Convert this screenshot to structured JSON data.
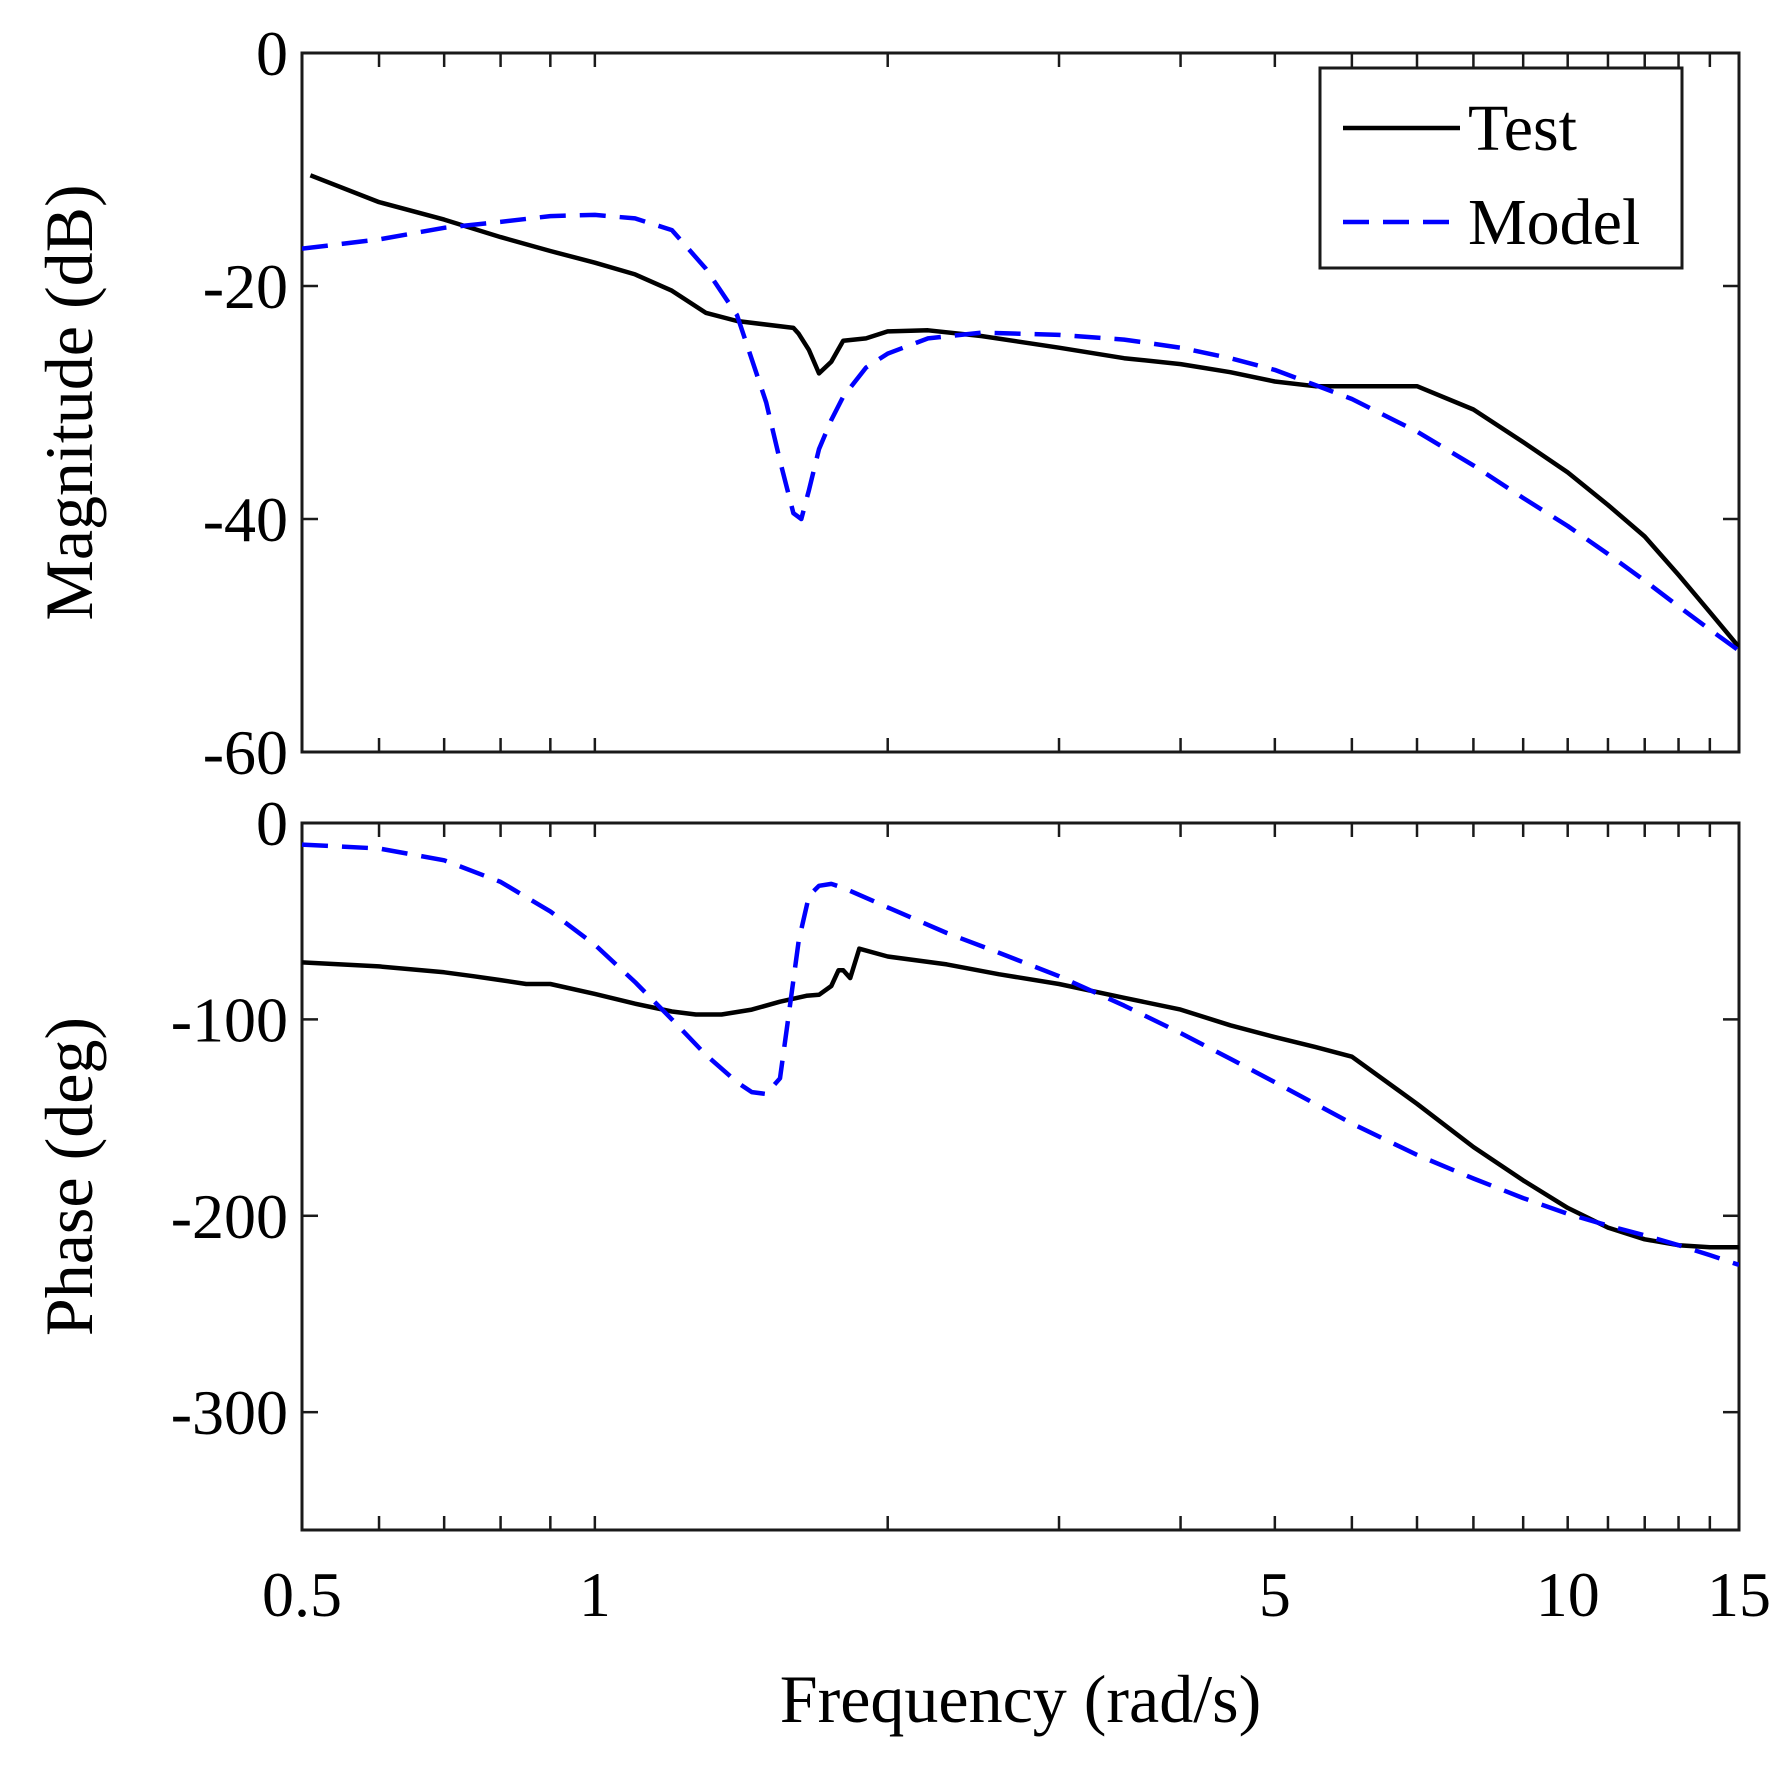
{
  "chart_data": [
    {
      "type": "line",
      "id": "magnitude",
      "xscale": "log",
      "xlim": [
        0.5,
        15
      ],
      "ylim": [
        -60,
        0
      ],
      "yticks": [
        0,
        -20,
        -40,
        -60
      ],
      "ytick_labels": [
        "0",
        "-20",
        "-40",
        "-60"
      ],
      "ylabel": "Magnitude (dB)",
      "xlabel": "",
      "grid": false,
      "legend": {
        "placement": "top-right",
        "entries": [
          {
            "label": "Test",
            "color": "#000000",
            "style": "solid"
          },
          {
            "label": "Model",
            "color": "#0000ff",
            "style": "dashed"
          }
        ]
      },
      "series": [
        {
          "name": "Test",
          "color": "#000000",
          "style": "solid",
          "x": [
            0.51,
            0.6,
            0.7,
            0.8,
            0.9,
            1.0,
            1.1,
            1.2,
            1.3,
            1.4,
            1.6,
            1.62,
            1.66,
            1.7,
            1.75,
            1.8,
            1.9,
            2.0,
            2.2,
            2.5,
            3.0,
            3.5,
            4.0,
            4.5,
            5.0,
            5.5,
            6.0,
            7.0,
            8.0,
            9.0,
            10.0,
            11.0,
            12.0,
            13.0,
            14.0,
            15.0
          ],
          "y": [
            -10.5,
            -12.8,
            -14.3,
            -15.8,
            -17.0,
            -18.0,
            -19.0,
            -20.4,
            -22.3,
            -23.0,
            -23.6,
            -24.1,
            -25.5,
            -27.5,
            -26.5,
            -24.7,
            -24.5,
            -23.9,
            -23.8,
            -24.3,
            -25.3,
            -26.2,
            -26.7,
            -27.4,
            -28.2,
            -28.6,
            -28.6,
            -28.6,
            -30.6,
            -33.4,
            -36.0,
            -38.8,
            -41.5,
            -44.8,
            -48.0,
            -51.0
          ]
        },
        {
          "name": "Model",
          "color": "#0000ff",
          "style": "dashed",
          "x": [
            0.5,
            0.6,
            0.7,
            0.8,
            0.9,
            1.0,
            1.1,
            1.2,
            1.3,
            1.4,
            1.5,
            1.55,
            1.6,
            1.63,
            1.66,
            1.7,
            1.75,
            1.8,
            1.9,
            2.0,
            2.2,
            2.5,
            3.0,
            3.5,
            4.0,
            4.5,
            5.0,
            5.5,
            6.0,
            7.0,
            8.0,
            9.0,
            10.0,
            11.0,
            12.0,
            13.0,
            14.0,
            15.0
          ],
          "y": [
            -16.8,
            -16.0,
            -15.0,
            -14.5,
            -14.0,
            -13.9,
            -14.2,
            -15.2,
            -18.5,
            -22.5,
            -30.0,
            -35.0,
            -39.5,
            -40.0,
            -37.5,
            -34.0,
            -31.5,
            -29.5,
            -27.0,
            -25.8,
            -24.5,
            -24.0,
            -24.2,
            -24.6,
            -25.3,
            -26.2,
            -27.2,
            -28.5,
            -29.7,
            -32.5,
            -35.4,
            -38.2,
            -40.6,
            -43.0,
            -45.3,
            -47.5,
            -49.5,
            -51.3
          ]
        }
      ]
    },
    {
      "type": "line",
      "id": "phase",
      "xscale": "log",
      "xlim": [
        0.5,
        15
      ],
      "ylim": [
        -360,
        0
      ],
      "yticks": [
        0,
        -100,
        -200,
        -300
      ],
      "ytick_labels": [
        "0",
        "-100",
        "-200",
        "-300"
      ],
      "xticks": [
        0.5,
        1,
        5,
        10,
        15
      ],
      "xtick_labels": [
        "0.5",
        "1",
        "5",
        "10",
        "15"
      ],
      "ylabel": "Phase (deg)",
      "xlabel": "Frequency (rad/s)",
      "grid": false,
      "series": [
        {
          "name": "Test",
          "color": "#000000",
          "style": "solid",
          "x": [
            0.5,
            0.6,
            0.7,
            0.75,
            0.8,
            0.85,
            0.9,
            1.0,
            1.1,
            1.2,
            1.27,
            1.35,
            1.45,
            1.55,
            1.65,
            1.7,
            1.75,
            1.78,
            1.8,
            1.83,
            1.87,
            2.0,
            2.3,
            2.6,
            3.0,
            3.5,
            4.0,
            4.5,
            5.0,
            5.5,
            6.0,
            7.0,
            8.0,
            9.0,
            10.0,
            11.0,
            12.0,
            13.0,
            14.0,
            15.0
          ],
          "y": [
            -71.0,
            -73.0,
            -76.0,
            -78.0,
            -80.0,
            -82.0,
            -82.0,
            -87.0,
            -92.0,
            -96.0,
            -97.5,
            -97.5,
            -95.0,
            -91.0,
            -88.0,
            -87.5,
            -83.0,
            -75.0,
            -75.0,
            -79.0,
            -64.0,
            -68.0,
            -72.0,
            -77.0,
            -82.0,
            -89.0,
            -95.0,
            -103.0,
            -109.0,
            -114.0,
            -119.0,
            -143.0,
            -165.0,
            -182.0,
            -196.0,
            -206.0,
            -212.0,
            -215.0,
            -216.0,
            -216.0
          ]
        },
        {
          "name": "Model",
          "color": "#0000ff",
          "style": "dashed",
          "x": [
            0.5,
            0.6,
            0.7,
            0.8,
            0.9,
            1.0,
            1.1,
            1.2,
            1.3,
            1.4,
            1.45,
            1.5,
            1.55,
            1.58,
            1.62,
            1.66,
            1.7,
            1.75,
            1.8,
            2.0,
            2.3,
            2.6,
            3.0,
            3.5,
            4.0,
            4.5,
            5.0,
            5.5,
            6.0,
            7.0,
            8.0,
            9.0,
            10.0,
            11.0,
            12.0,
            13.0,
            14.0,
            15.0
          ],
          "y": [
            -11.0,
            -13.0,
            -19.0,
            -30.0,
            -45.0,
            -62.0,
            -81.0,
            -100.0,
            -118.0,
            -132.0,
            -137.0,
            -138.0,
            -130.0,
            -100.0,
            -60.0,
            -37.0,
            -32.0,
            -31.0,
            -33.0,
            -43.0,
            -56.0,
            -66.0,
            -78.0,
            -93.0,
            -107.0,
            -120.0,
            -132.0,
            -143.0,
            -153.0,
            -169.0,
            -181.0,
            -191.0,
            -199.0,
            -205.0,
            -210.0,
            -215.0,
            -220.0,
            -225.0
          ]
        }
      ]
    }
  ]
}
